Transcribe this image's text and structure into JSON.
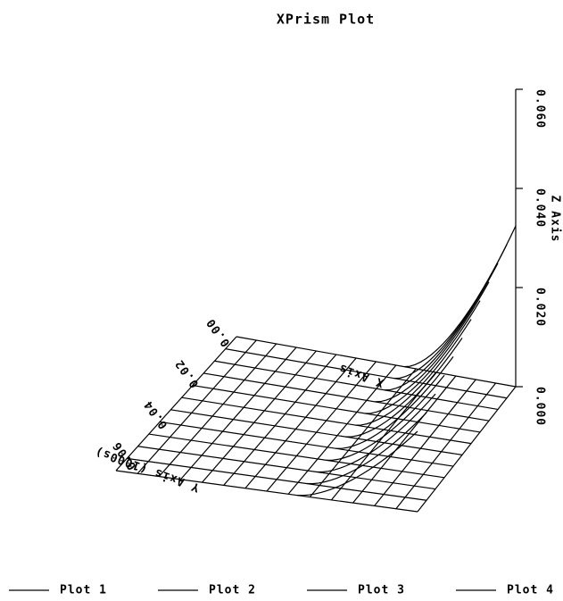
{
  "chart_data": {
    "type": "surface3d",
    "title": "XPrism Plot",
    "x_label": "X Axis",
    "y_label": "Y Axis (1000s)",
    "z_label": "Z Axis",
    "zlim": [
      0,
      0.06
    ],
    "zticks": [
      {
        "value": 0,
        "label": "0.000"
      },
      {
        "value": 0.02,
        "label": "0.020"
      },
      {
        "value": 0.04,
        "label": "0.040"
      },
      {
        "value": 0.06,
        "label": "0.060"
      }
    ],
    "yticks": [
      {
        "value": 0,
        "label": "0.00"
      },
      {
        "value": 0.02,
        "label": "0.02"
      },
      {
        "value": 0.04,
        "label": "0.04"
      },
      {
        "value": 0.06,
        "label": "0.06"
      }
    ],
    "series": [
      {
        "name": "Plot 1"
      },
      {
        "name": "Plot 2"
      },
      {
        "name": "Plot 3"
      },
      {
        "name": "Plot 4"
      }
    ]
  }
}
